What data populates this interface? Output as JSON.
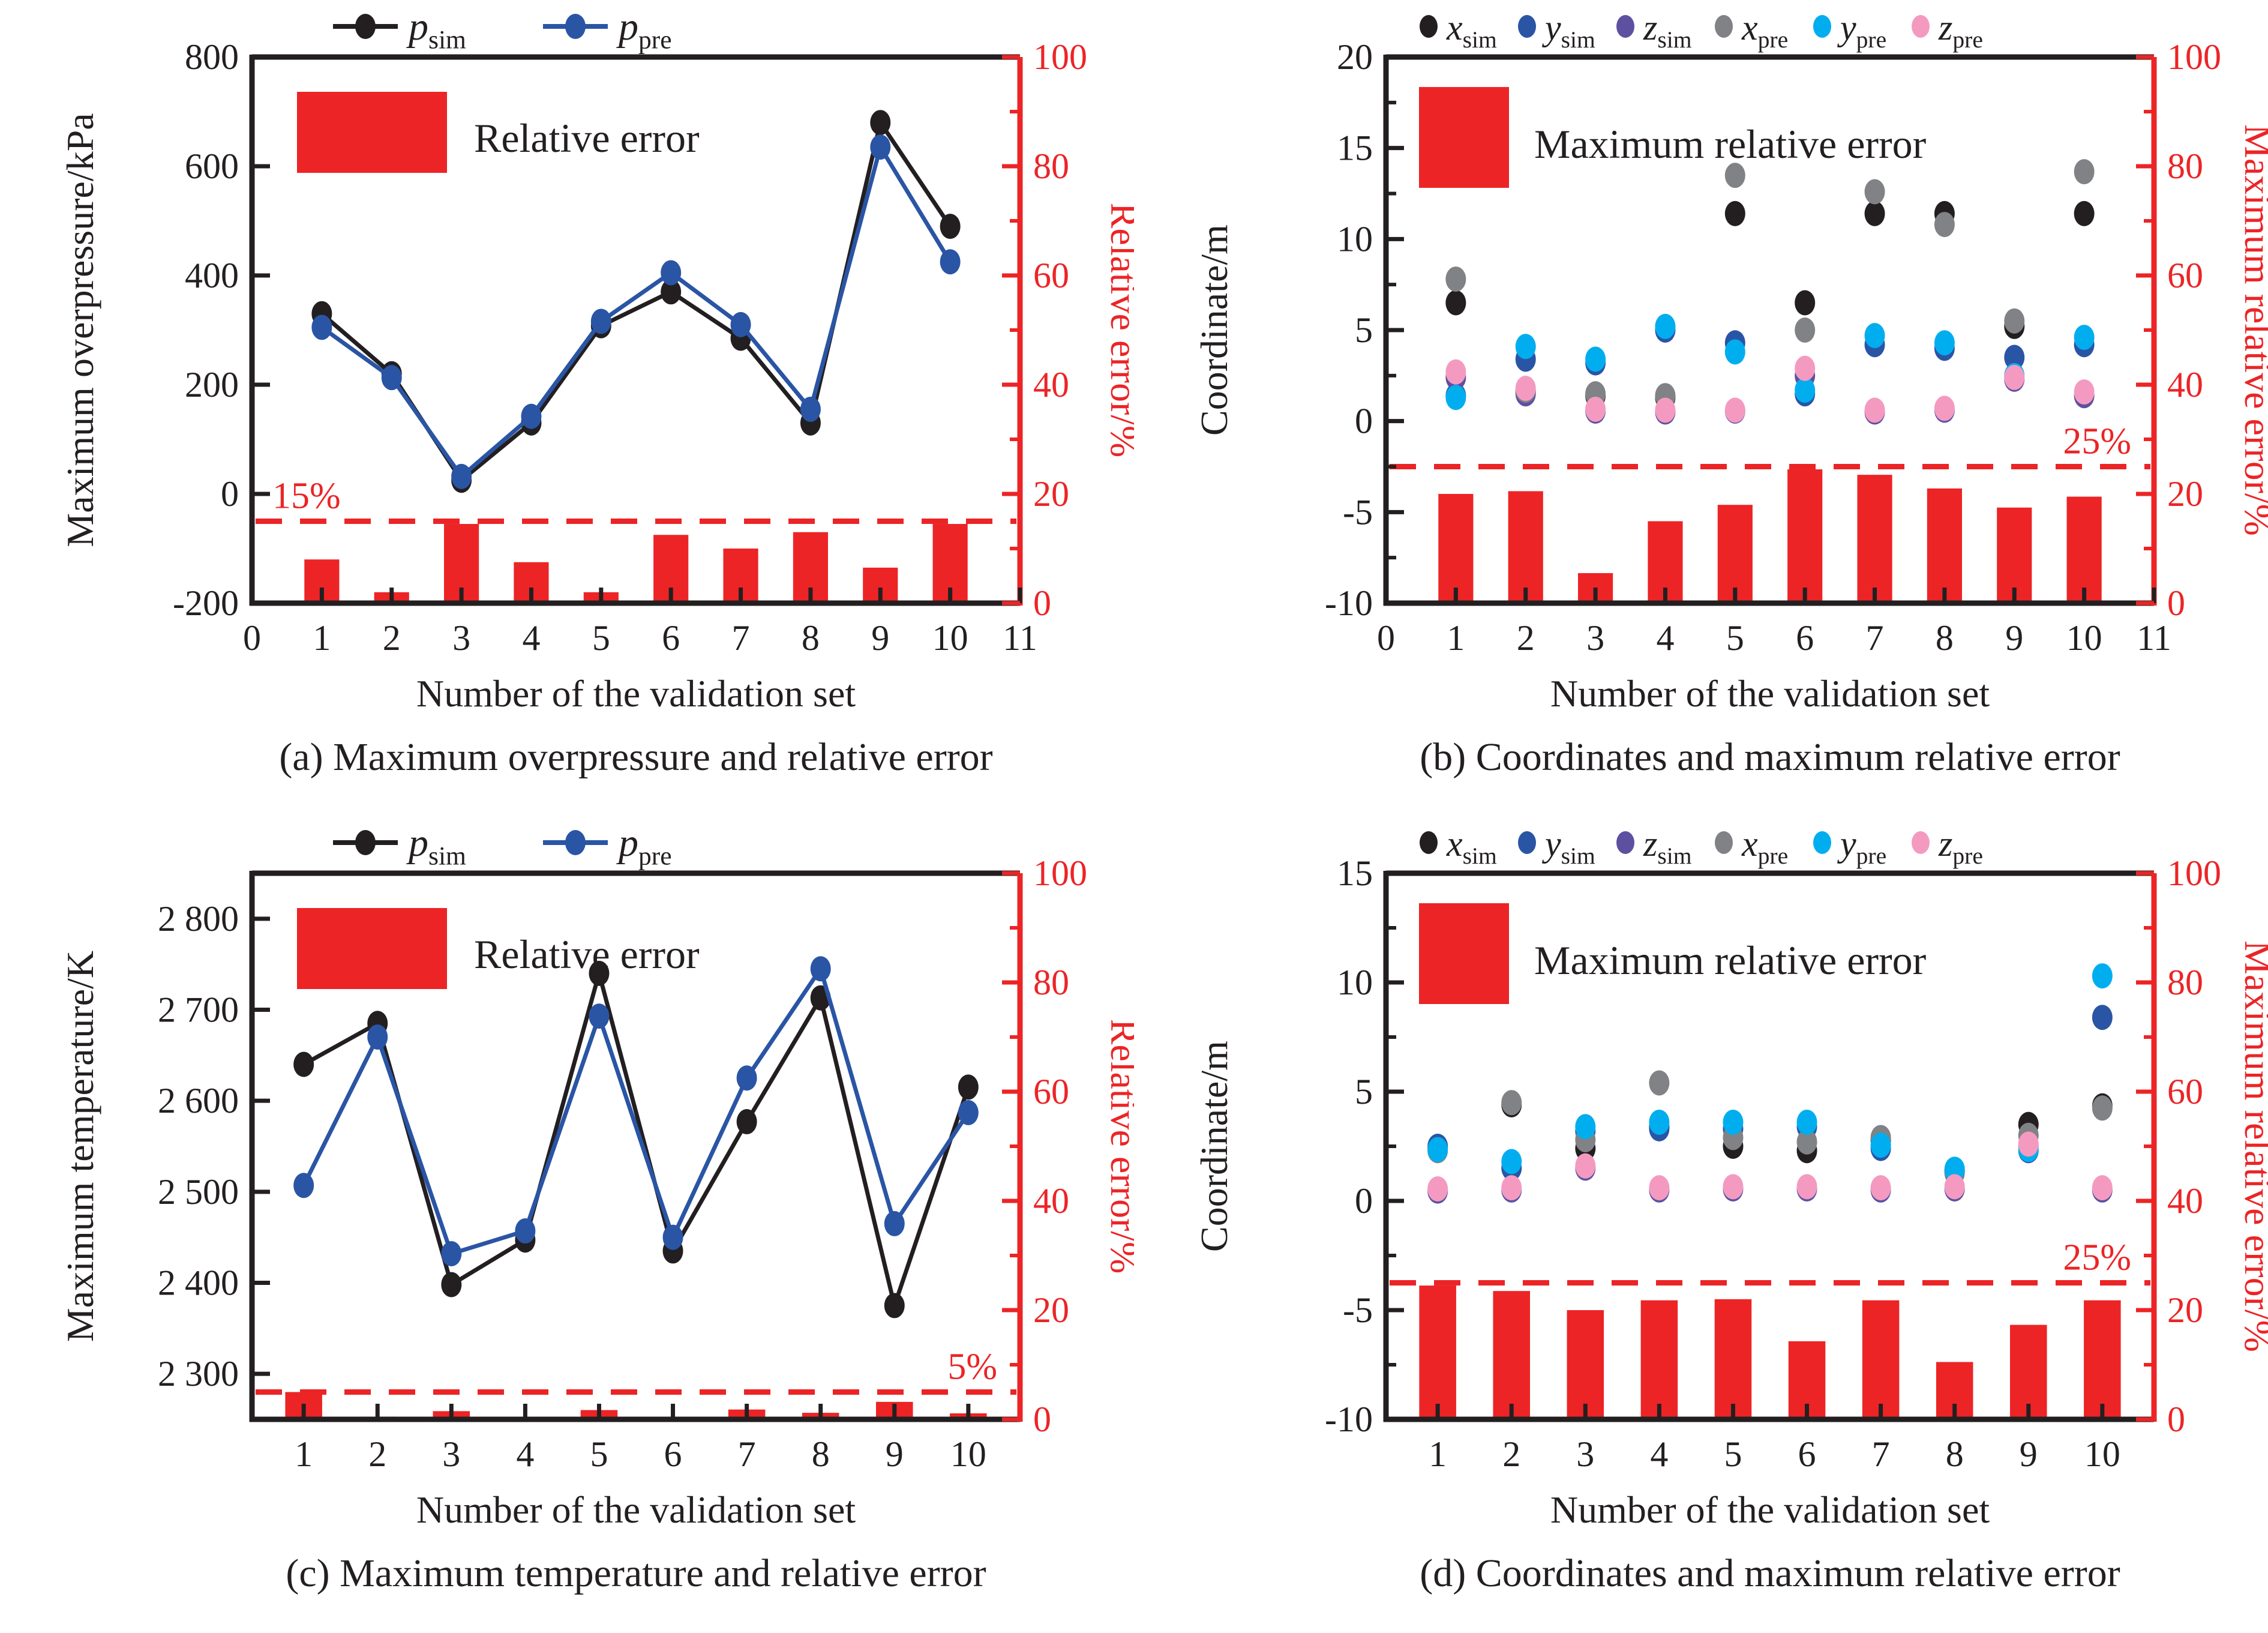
{
  "colors": {
    "black": "#231f20",
    "blue": "#2a55a5",
    "red": "#ec2426",
    "gray": "#808285",
    "cyan": "#00aeef",
    "pink": "#f49ac1",
    "purple": "#5e50a1",
    "white": "#ffffff"
  },
  "chart_data": [
    {
      "id": "a",
      "type": "line+bar",
      "caption": "(a) Maximum overpressure and relative error",
      "xlabel": "Number of the validation set",
      "ylabel": "Maximum overpressure/kPa",
      "ylabel_right": "Relative error/%",
      "xlim": [
        0,
        11
      ],
      "x_ticks": [
        0,
        1,
        2,
        3,
        4,
        5,
        6,
        7,
        8,
        9,
        10,
        11
      ],
      "ylim": [
        -200,
        800
      ],
      "y_ticks": [
        {
          "v": -200,
          "label": "-200"
        },
        {
          "v": 0,
          "label": "0"
        },
        {
          "v": 200,
          "label": "200"
        },
        {
          "v": 400,
          "label": "400"
        },
        {
          "v": 600,
          "label": "600"
        },
        {
          "v": 800,
          "label": "800"
        }
      ],
      "rlim": [
        0,
        100
      ],
      "r_ticks": [
        0,
        20,
        40,
        60,
        80,
        100
      ],
      "r_minors": [
        10,
        30,
        50,
        70,
        90
      ],
      "threshold": {
        "value": 15,
        "label": "15%",
        "side": "left"
      },
      "legend_style": "line",
      "inner_legend": "Relative error",
      "bars": {
        "name": "Relative error",
        "values": [
          8,
          2,
          14.5,
          7.5,
          2,
          12.5,
          10,
          13,
          6.5,
          14.5
        ]
      },
      "series": [
        {
          "label": {
            "main": "p",
            "sub": "sim"
          },
          "color": "black",
          "values": [
            330,
            220,
            25,
            130,
            308,
            370,
            285,
            130,
            680,
            490
          ]
        },
        {
          "label": {
            "main": "p",
            "sub": "pre"
          },
          "color": "blue",
          "values": [
            305,
            213,
            32,
            142,
            316,
            405,
            310,
            155,
            635,
            425
          ]
        }
      ]
    },
    {
      "id": "b",
      "type": "scatter+bar",
      "caption": "(b) Coordinates and maximum relative error",
      "xlabel": "Number of the validation set",
      "ylabel": "Coordinate/m",
      "ylabel_right": "Maximum relative error/%",
      "xlim": [
        0,
        11
      ],
      "x_ticks": [
        0,
        1,
        2,
        3,
        4,
        5,
        6,
        7,
        8,
        9,
        10,
        11
      ],
      "ylim": [
        -10,
        20
      ],
      "y_ticks": [
        {
          "v": -10,
          "label": "-10"
        },
        {
          "v": -5,
          "label": "-5"
        },
        {
          "v": 0,
          "label": "0"
        },
        {
          "v": 5,
          "label": "5"
        },
        {
          "v": 10,
          "label": "10"
        },
        {
          "v": 15,
          "label": "15"
        },
        {
          "v": 20,
          "label": "20"
        }
      ],
      "y_minors": [
        -7.5,
        -2.5,
        2.5,
        7.5,
        12.5,
        17.5
      ],
      "rlim": [
        0,
        100
      ],
      "r_ticks": [
        0,
        20,
        40,
        60,
        80,
        100
      ],
      "r_minors": [
        10,
        30,
        50,
        70,
        90
      ],
      "threshold": {
        "value": 25,
        "label": "25%",
        "side": "right"
      },
      "legend_style": "dot",
      "inner_legend": "Maximum relative error",
      "bars": {
        "name": "Maximum relative error",
        "values": [
          20,
          20.5,
          5.5,
          15,
          18,
          24.5,
          23.5,
          21,
          17.5,
          19.5
        ]
      },
      "series": [
        {
          "label": {
            "main": "x",
            "sub": "sim"
          },
          "color": "black",
          "values": [
            6.5,
            1.6,
            1.4,
            1.3,
            11.4,
            6.5,
            11.4,
            11.4,
            5.2,
            11.4
          ]
        },
        {
          "label": {
            "main": "y",
            "sub": "sim"
          },
          "color": "blue",
          "values": [
            1.4,
            3.4,
            3.2,
            5.0,
            4.3,
            1.5,
            4.2,
            4.0,
            3.5,
            4.2
          ]
        },
        {
          "label": {
            "main": "z",
            "sub": "sim"
          },
          "color": "purple",
          "values": [
            2.4,
            1.5,
            0.55,
            0.5,
            0.55,
            2.5,
            0.5,
            0.6,
            2.3,
            1.4
          ]
        },
        {
          "label": {
            "main": "x",
            "sub": "pre"
          },
          "color": "gray",
          "values": [
            7.8,
            1.7,
            1.5,
            1.4,
            13.5,
            5.0,
            12.6,
            10.8,
            5.5,
            13.7
          ]
        },
        {
          "label": {
            "main": "y",
            "sub": "pre"
          },
          "color": "cyan",
          "values": [
            1.3,
            4.1,
            3.4,
            5.2,
            3.8,
            1.7,
            4.7,
            4.3,
            2.5,
            4.6
          ]
        },
        {
          "label": {
            "main": "z",
            "sub": "pre"
          },
          "color": "pink",
          "values": [
            2.7,
            1.8,
            0.65,
            0.6,
            0.6,
            2.9,
            0.6,
            0.7,
            2.4,
            1.6
          ]
        }
      ]
    },
    {
      "id": "c",
      "type": "line+bar",
      "caption": "(c) Maximum temperature and relative error",
      "xlabel": "Number of the validation set",
      "ylabel": "Maximum temperature/K",
      "ylabel_right": "Relative error/%",
      "xlim": [
        0.3,
        10.7
      ],
      "x_ticks": [
        1,
        2,
        3,
        4,
        5,
        6,
        7,
        8,
        9,
        10
      ],
      "ylim": [
        2250,
        2850
      ],
      "y_ticks": [
        {
          "v": 2300,
          "label": "2 300"
        },
        {
          "v": 2400,
          "label": "2 400"
        },
        {
          "v": 2500,
          "label": "2 500"
        },
        {
          "v": 2600,
          "label": "2 600"
        },
        {
          "v": 2700,
          "label": "2 700"
        },
        {
          "v": 2800,
          "label": "2 800"
        }
      ],
      "rlim": [
        0,
        100
      ],
      "r_ticks": [
        0,
        20,
        40,
        60,
        80,
        100
      ],
      "r_minors": [
        10,
        30,
        50,
        70,
        90
      ],
      "threshold": {
        "value": 5,
        "label": "5%",
        "side": "right"
      },
      "legend_style": "line",
      "inner_legend": "Relative error",
      "bars": {
        "name": "Relative error",
        "values": [
          5,
          0.5,
          1.5,
          0.3,
          1.7,
          0.4,
          1.8,
          1.2,
          3.2,
          1.1
        ]
      },
      "series": [
        {
          "label": {
            "main": "p",
            "sub": "sim"
          },
          "color": "black",
          "values": [
            2640,
            2685,
            2398,
            2447,
            2740,
            2435,
            2577,
            2713,
            2375,
            2615
          ]
        },
        {
          "label": {
            "main": "p",
            "sub": "pre"
          },
          "color": "blue",
          "values": [
            2507,
            2670,
            2432,
            2457,
            2693,
            2450,
            2625,
            2745,
            2465,
            2587
          ]
        }
      ]
    },
    {
      "id": "d",
      "type": "scatter+bar",
      "caption": "(d) Coordinates and maximum relative error",
      "xlabel": "Number of the validation set",
      "ylabel": "Coordinate/m",
      "ylabel_right": "Maximum relative error/%",
      "xlim": [
        0.3,
        10.7
      ],
      "x_ticks": [
        1,
        2,
        3,
        4,
        5,
        6,
        7,
        8,
        9,
        10
      ],
      "ylim": [
        -10,
        15
      ],
      "y_ticks": [
        {
          "v": -10,
          "label": "-10"
        },
        {
          "v": -5,
          "label": "-5"
        },
        {
          "v": 0,
          "label": "0"
        },
        {
          "v": 5,
          "label": "5"
        },
        {
          "v": 10,
          "label": "10"
        },
        {
          "v": 15,
          "label": "15"
        }
      ],
      "y_minors": [
        -7.5,
        -2.5,
        2.5,
        7.5,
        12.5
      ],
      "rlim": [
        0,
        100
      ],
      "r_ticks": [
        0,
        20,
        40,
        60,
        80,
        100
      ],
      "r_minors": [
        10,
        30,
        50,
        70,
        90
      ],
      "threshold": {
        "value": 25,
        "label": "25%",
        "side": "right"
      },
      "legend_style": "dot",
      "inner_legend": "Maximum relative error",
      "bars": {
        "name": "Maximum relative error",
        "values": [
          24.5,
          23.5,
          20,
          21.8,
          22,
          14.3,
          21.8,
          10.5,
          17.3,
          21.8
        ]
      },
      "series": [
        {
          "label": {
            "main": "x",
            "sub": "sim"
          },
          "color": "black",
          "values": [
            2.4,
            4.4,
            2.4,
            3.4,
            2.5,
            2.3,
            2.8,
            1.4,
            3.5,
            4.35
          ]
        },
        {
          "label": {
            "main": "y",
            "sub": "sim"
          },
          "color": "blue",
          "values": [
            2.5,
            1.5,
            3.2,
            3.3,
            3.3,
            3.4,
            2.4,
            1.3,
            2.3,
            8.4
          ]
        },
        {
          "label": {
            "main": "z",
            "sub": "sim"
          },
          "color": "purple",
          "values": [
            0.45,
            0.5,
            1.5,
            0.5,
            0.55,
            0.55,
            0.5,
            0.55,
            2.5,
            0.5
          ]
        },
        {
          "label": {
            "main": "x",
            "sub": "pre"
          },
          "color": "gray",
          "values": [
            2.3,
            4.5,
            2.8,
            5.4,
            2.9,
            2.7,
            2.9,
            1.35,
            3.0,
            4.25
          ]
        },
        {
          "label": {
            "main": "y",
            "sub": "pre"
          },
          "color": "cyan",
          "values": [
            2.35,
            1.8,
            3.4,
            3.6,
            3.6,
            3.6,
            2.55,
            1.45,
            2.35,
            10.3
          ]
        },
        {
          "label": {
            "main": "z",
            "sub": "pre"
          },
          "color": "pink",
          "values": [
            0.55,
            0.6,
            1.6,
            0.6,
            0.65,
            0.65,
            0.6,
            0.65,
            2.6,
            0.6
          ]
        }
      ]
    }
  ]
}
